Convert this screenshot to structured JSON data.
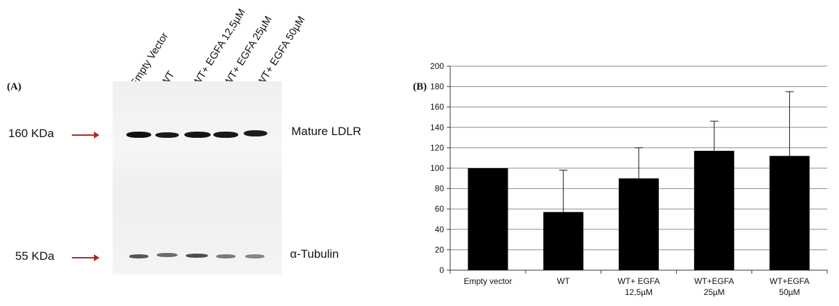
{
  "panel_a": {
    "label": "(A)",
    "lanes": [
      "Empty Vector",
      "WT",
      "WT+ EGFA 12,5µM",
      "WT+ EGFA 25µM",
      "WT+ EGFA 50µM"
    ],
    "markers": [
      {
        "text": "160 KDa",
        "band": "Mature LDLR"
      },
      {
        "text": "55 KDa",
        "band": "α-Tubulin"
      }
    ],
    "colors": {
      "arrow": "#b0281e",
      "band": "#1a1a1a"
    }
  },
  "panel_b": {
    "label": "(B)"
  },
  "chart_data": {
    "type": "bar",
    "categories": [
      "Empty vector",
      "WT",
      "WT+ EGFA 12,5µM",
      "WT+EGFA 25µM",
      "WT+EGFA 50µM"
    ],
    "category_lines": [
      [
        "Empty vector"
      ],
      [
        "WT"
      ],
      [
        "WT+ EGFA",
        "12,5µM"
      ],
      [
        "WT+EGFA",
        "25µM"
      ],
      [
        "WT+EGFA",
        "50µM"
      ]
    ],
    "values": [
      100,
      57,
      90,
      117,
      112
    ],
    "error_upper": [
      0,
      41,
      30,
      29,
      63
    ],
    "ylim": [
      0,
      200
    ],
    "yticks": [
      0,
      20,
      40,
      60,
      80,
      100,
      120,
      140,
      160,
      180,
      200
    ],
    "title": "",
    "xlabel": "",
    "ylabel": "",
    "grid": true,
    "bar_color": "#000000"
  }
}
